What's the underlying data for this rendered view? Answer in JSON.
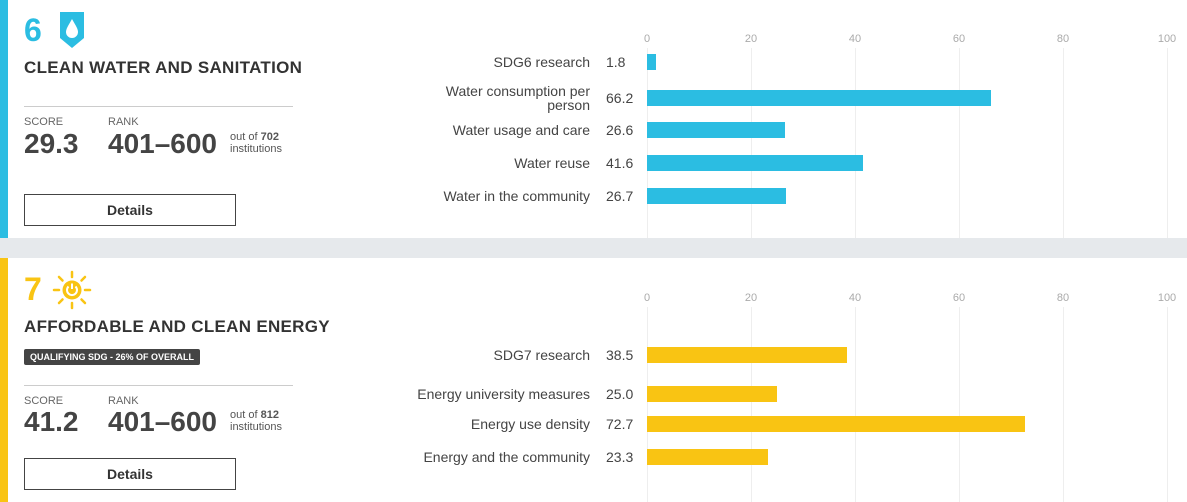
{
  "cards": [
    {
      "number": "6",
      "title": "CLEAN WATER AND SANITATION",
      "score_label": "SCORE",
      "score": "29.3",
      "rank_label": "RANK",
      "rank": "401–600",
      "out_of_label": "out of",
      "total": "702",
      "institutions_label": "institutions",
      "button": "Details"
    },
    {
      "number": "7",
      "title": "AFFORDABLE AND CLEAN ENERGY",
      "badge": "QUALIFYING SDG - 26% OF OVERALL",
      "score_label": "SCORE",
      "score": "41.2",
      "rank_label": "RANK",
      "rank": "401–600",
      "out_of_label": "out of",
      "total": "812",
      "institutions_label": "institutions",
      "button": "Details"
    }
  ],
  "chart_data": [
    {
      "type": "bar",
      "orientation": "horizontal",
      "color": "#2bbde2",
      "xlim": [
        0,
        100
      ],
      "xticks": [
        0,
        20,
        40,
        60,
        80,
        100
      ],
      "grid": true,
      "categories": [
        "SDG6 research",
        "Water consumption per person",
        "Water usage and care",
        "Water reuse",
        "Water in the community"
      ],
      "values": [
        1.8,
        66.2,
        26.6,
        41.6,
        26.7
      ]
    },
    {
      "type": "bar",
      "orientation": "horizontal",
      "color": "#f9c413",
      "xlim": [
        0,
        100
      ],
      "xticks": [
        0,
        20,
        40,
        60,
        80,
        100
      ],
      "grid": true,
      "categories": [
        "SDG7 research",
        "Energy university measures",
        "Energy use density",
        "Energy and the community"
      ],
      "values": [
        38.5,
        25.0,
        72.7,
        23.3
      ],
      "value_labels": [
        "38.5",
        "25.0",
        "72.7",
        "23.3"
      ]
    }
  ]
}
